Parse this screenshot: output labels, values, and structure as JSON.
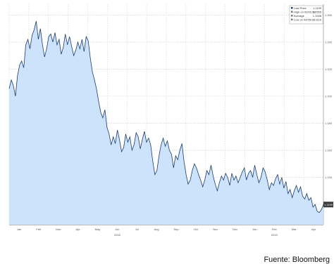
{
  "chart_data": {
    "type": "area",
    "source": "Fuente: Bloomberg",
    "x_months": [
      "Jan",
      "Feb",
      "Mar",
      "Apr",
      "May",
      "Jun",
      "Jul",
      "Aug",
      "Sep",
      "Oct",
      "Nov",
      "Dec",
      "Jan",
      "Feb",
      "Mar",
      "Apr"
    ],
    "x_years": [
      "2018",
      "2019"
    ],
    "y_tick_labels": [
      "1.260",
      "1.240",
      "1.220",
      "1.200",
      "1.180",
      "1.160",
      "1.140",
      "1.120"
    ],
    "ylim": [
      1.105,
      1.268
    ],
    "legend": [
      {
        "label": "Last Price",
        "value": "1.1199"
      },
      {
        "label": "High on 02/01/18",
        "value": "1.2555"
      },
      {
        "label": "Average",
        "value": "1.1948"
      },
      {
        "label": "Low on 04/25/19",
        "value": "1.1110"
      }
    ],
    "last_value_label": "1.1199",
    "fill_color": "#cde3fb",
    "line_color": "#1c3c6e",
    "series": [
      [
        0,
        1.2055
      ],
      [
        2,
        1.212
      ],
      [
        4,
        1.208
      ],
      [
        6,
        1.2
      ],
      [
        8,
        1.215
      ],
      [
        10,
        1.223
      ],
      [
        12,
        1.226
      ],
      [
        14,
        1.221
      ],
      [
        16,
        1.238
      ],
      [
        18,
        1.242
      ],
      [
        20,
        1.235
      ],
      [
        22,
        1.245
      ],
      [
        24,
        1.249
      ],
      [
        26,
        1.2555
      ],
      [
        28,
        1.242
      ],
      [
        30,
        1.25
      ],
      [
        32,
        1.238
      ],
      [
        34,
        1.229
      ],
      [
        36,
        1.235
      ],
      [
        38,
        1.244
      ],
      [
        40,
        1.246
      ],
      [
        42,
        1.24
      ],
      [
        44,
        1.247
      ],
      [
        46,
        1.238
      ],
      [
        48,
        1.242
      ],
      [
        50,
        1.231
      ],
      [
        52,
        1.236
      ],
      [
        54,
        1.246
      ],
      [
        56,
        1.238
      ],
      [
        58,
        1.244
      ],
      [
        60,
        1.237
      ],
      [
        62,
        1.23
      ],
      [
        64,
        1.234
      ],
      [
        66,
        1.24
      ],
      [
        68,
        1.235
      ],
      [
        70,
        1.242
      ],
      [
        72,
        1.233
      ],
      [
        74,
        1.244
      ],
      [
        76,
        1.241
      ],
      [
        78,
        1.228
      ],
      [
        80,
        1.218
      ],
      [
        82,
        1.212
      ],
      [
        84,
        1.205
      ],
      [
        86,
        1.196
      ],
      [
        88,
        1.188
      ],
      [
        90,
        1.184
      ],
      [
        92,
        1.19
      ],
      [
        94,
        1.177
      ],
      [
        96,
        1.172
      ],
      [
        98,
        1.164
      ],
      [
        100,
        1.17
      ],
      [
        102,
        1.165
      ],
      [
        104,
        1.175
      ],
      [
        106,
        1.168
      ],
      [
        108,
        1.159
      ],
      [
        110,
        1.162
      ],
      [
        112,
        1.172
      ],
      [
        114,
        1.166
      ],
      [
        116,
        1.17
      ],
      [
        118,
        1.16
      ],
      [
        120,
        1.164
      ],
      [
        122,
        1.173
      ],
      [
        124,
        1.17
      ],
      [
        126,
        1.161
      ],
      [
        128,
        1.168
      ],
      [
        130,
        1.174
      ],
      [
        132,
        1.166
      ],
      [
        134,
        1.169
      ],
      [
        136,
        1.164
      ],
      [
        138,
        1.152
      ],
      [
        140,
        1.142
      ],
      [
        142,
        1.145
      ],
      [
        144,
        1.156
      ],
      [
        146,
        1.164
      ],
      [
        148,
        1.169
      ],
      [
        150,
        1.163
      ],
      [
        152,
        1.167
      ],
      [
        154,
        1.16
      ],
      [
        156,
        1.157
      ],
      [
        158,
        1.147
      ],
      [
        160,
        1.156
      ],
      [
        162,
        1.153
      ],
      [
        164,
        1.16
      ],
      [
        166,
        1.165
      ],
      [
        168,
        1.152
      ],
      [
        170,
        1.142
      ],
      [
        172,
        1.135
      ],
      [
        174,
        1.138
      ],
      [
        176,
        1.145
      ],
      [
        178,
        1.15
      ],
      [
        180,
        1.147
      ],
      [
        182,
        1.142
      ],
      [
        184,
        1.138
      ],
      [
        186,
        1.133
      ],
      [
        188,
        1.138
      ],
      [
        190,
        1.145
      ],
      [
        192,
        1.142
      ],
      [
        194,
        1.149
      ],
      [
        196,
        1.141
      ],
      [
        198,
        1.135
      ],
      [
        200,
        1.13
      ],
      [
        202,
        1.136
      ],
      [
        204,
        1.141
      ],
      [
        206,
        1.138
      ],
      [
        208,
        1.143
      ],
      [
        210,
        1.14
      ],
      [
        212,
        1.134
      ],
      [
        214,
        1.143
      ],
      [
        216,
        1.138
      ],
      [
        218,
        1.141
      ],
      [
        220,
        1.136
      ],
      [
        222,
        1.14
      ],
      [
        224,
        1.144
      ],
      [
        226,
        1.147
      ],
      [
        228,
        1.138
      ],
      [
        230,
        1.143
      ],
      [
        232,
        1.145
      ],
      [
        234,
        1.14
      ],
      [
        236,
        1.149
      ],
      [
        238,
        1.142
      ],
      [
        240,
        1.136
      ],
      [
        242,
        1.14
      ],
      [
        244,
        1.147
      ],
      [
        246,
        1.144
      ],
      [
        248,
        1.138
      ],
      [
        250,
        1.131
      ],
      [
        252,
        1.136
      ],
      [
        254,
        1.134
      ],
      [
        256,
        1.139
      ],
      [
        258,
        1.142
      ],
      [
        260,
        1.135
      ],
      [
        262,
        1.14
      ],
      [
        264,
        1.132
      ],
      [
        266,
        1.137
      ],
      [
        268,
        1.128
      ],
      [
        270,
        1.131
      ],
      [
        272,
        1.125
      ],
      [
        274,
        1.13
      ],
      [
        276,
        1.134
      ],
      [
        278,
        1.129
      ],
      [
        280,
        1.133
      ],
      [
        282,
        1.126
      ],
      [
        284,
        1.124
      ],
      [
        286,
        1.128
      ],
      [
        288,
        1.123
      ],
      [
        290,
        1.125
      ],
      [
        292,
        1.118
      ],
      [
        294,
        1.12
      ],
      [
        296,
        1.115
      ],
      [
        298,
        1.114
      ],
      [
        300,
        1.116
      ],
      [
        302,
        1.1199
      ]
    ]
  }
}
